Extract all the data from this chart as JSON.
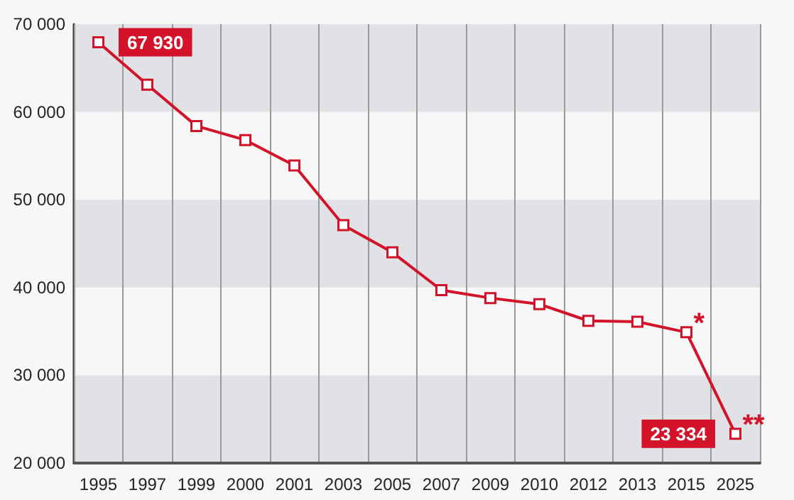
{
  "chart_data": {
    "type": "line",
    "categories": [
      "1995",
      "1997",
      "1999",
      "2000",
      "2001",
      "2003",
      "2005",
      "2007",
      "2009",
      "2010",
      "2012",
      "2013",
      "2015",
      "2025"
    ],
    "series": [
      {
        "color": "#d2132a",
        "values": [
          67930,
          63100,
          58400,
          56800,
          53900,
          47100,
          44000,
          39700,
          38800,
          38100,
          36200,
          36100,
          34900,
          23334
        ],
        "value_labels": [
          "67 930",
          null,
          null,
          null,
          null,
          null,
          null,
          null,
          null,
          null,
          null,
          null,
          null,
          "23 334"
        ]
      }
    ],
    "ylim": [
      20000,
      70000
    ],
    "yticks": [
      {
        "value": 20000,
        "label": "20 000"
      },
      {
        "value": 30000,
        "label": "30 000"
      },
      {
        "value": 40000,
        "label": "40 000"
      },
      {
        "value": 50000,
        "label": "50 000"
      },
      {
        "value": 60000,
        "label": "60 000"
      },
      {
        "value": 70000,
        "label": "70 000"
      }
    ],
    "bands": [
      {
        "axis": "y",
        "from": 20000,
        "to": 30000,
        "color": "#e1e2e6"
      },
      {
        "axis": "y",
        "from": 40000,
        "to": 50000,
        "color": "#e1e2e6"
      },
      {
        "axis": "y",
        "from": 60000,
        "to": 70000,
        "color": "#e1e2e6"
      }
    ],
    "annotations": [
      {
        "text": "*",
        "x": "2015",
        "y": 34900
      },
      {
        "text": "**",
        "x": "2025",
        "y": 23334
      }
    ],
    "grid": "x",
    "marker": "square",
    "line_style": "solid"
  }
}
